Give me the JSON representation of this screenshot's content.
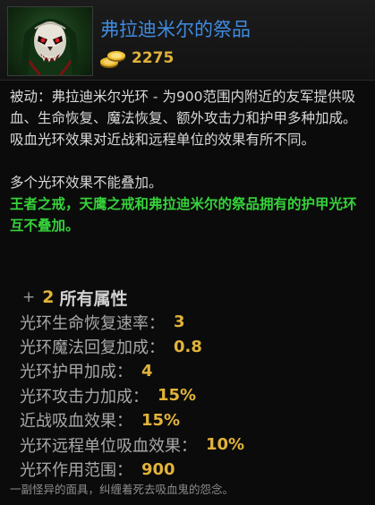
{
  "item": {
    "name": "弗拉迪米尔的祭品",
    "icon": "vladmir-mask-icon",
    "cost": "2275",
    "cost_icon": "gold-coins-icon"
  },
  "description": {
    "paragraph1": "被动：弗拉迪米尔光环 - 为900范围内附近的友军提供吸血、生命恢复、魔法恢复、额外攻击力和护甲多种加成。吸血光环效果对近战和远程单位的效果有所不同。",
    "paragraph2": "多个光环效果不能叠加。",
    "paragraph3": "王者之戒，天鹰之戒和弗拉迪米尔的祭品拥有的护甲光环互不叠加。"
  },
  "attributes": {
    "plus": "+",
    "count": "2",
    "title": "所有属性",
    "rows": [
      {
        "label": "光环生命恢复速率：",
        "value": "3"
      },
      {
        "label": "光环魔法回复加成：",
        "value": "0.8"
      },
      {
        "label": "光环护甲加成：",
        "value": "4"
      },
      {
        "label": "光环攻击力加成：",
        "value": "15%"
      },
      {
        "label": "近战吸血效果：",
        "value": "15%"
      },
      {
        "label": "光环远程单位吸血效果：",
        "value": "10%"
      },
      {
        "label": "光环作用范围：",
        "value": "900"
      }
    ]
  },
  "lore": "一副怪异的面具，纠缠着死去吸血鬼的怨念。",
  "colors": {
    "name": "#3f8ae0",
    "gold": "#e2b33a",
    "highlight": "#35d23a",
    "text": "#d8d8d8",
    "background": "#0b0b0b"
  }
}
